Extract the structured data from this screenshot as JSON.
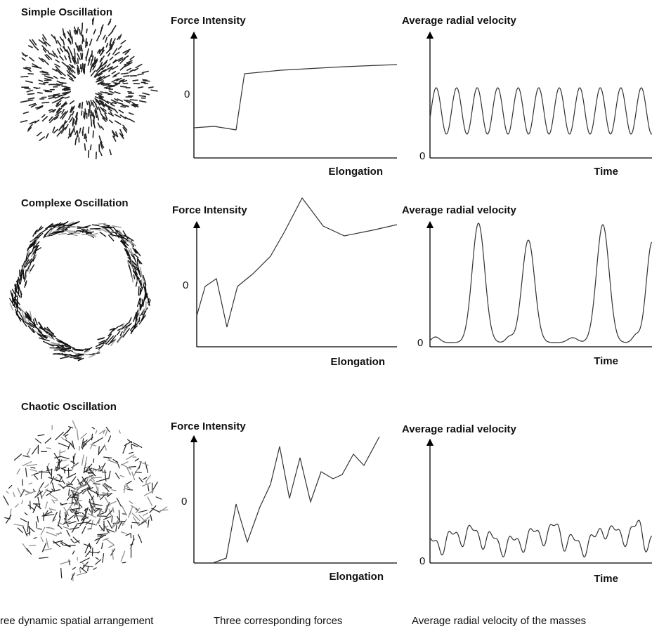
{
  "rows": [
    {
      "title": "Simple Oscillation",
      "force": {
        "title": "Force Intensity",
        "zero": "0",
        "x_label": "Elongation"
      },
      "velocity": {
        "title": "Average radial velocity",
        "zero": "0",
        "x_label": "Time"
      }
    },
    {
      "title": "Complexe Oscillation",
      "force": {
        "title": "Force Intensity",
        "zero": "0",
        "x_label": "Elongation"
      },
      "velocity": {
        "title": "Average radial velocity",
        "zero": "0",
        "x_label": "Time"
      }
    },
    {
      "title": "Chaotic Oscillation",
      "force": {
        "title": "Force Intensity",
        "zero": "0",
        "x_label": "Elongation"
      },
      "velocity": {
        "title": "Average radial velocity",
        "zero": "0",
        "x_label": "Time"
      }
    }
  ],
  "captions": [
    "ree dynamic spatial arrangement",
    "Three corresponding forces",
    "Average radial velocity of the masses"
  ]
}
